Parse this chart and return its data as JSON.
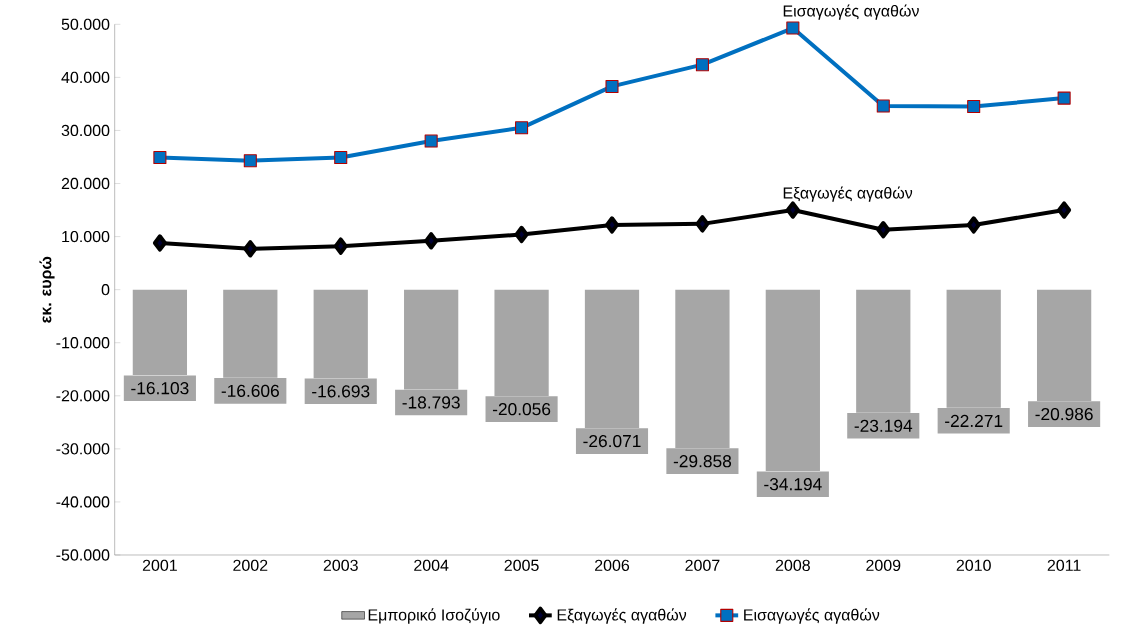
{
  "chart_data": {
    "type": "bar",
    "ylabel": "**εκ. ευρώ**",
    "categories": [
      "2001",
      "2002",
      "2003",
      "2004",
      "2005",
      "2006",
      "2007",
      "2008",
      "2009",
      "2010",
      "2011"
    ],
    "series": [
      {
        "name": "Εμπορικό Ισοζύγιο",
        "color": "#a6a6a6",
        "values": [
          -16103,
          -16606,
          -16693,
          -18793,
          -20056,
          -26071,
          -29858,
          -34194,
          -23194,
          -22271,
          -20986
        ],
        "value_labels": [
          "-16.103",
          "-16.606",
          "-16.693",
          "-18.793",
          "-20.056",
          "-26.071",
          "-29.858",
          "-34.194",
          "-23.194",
          "-22.271",
          "-20.986"
        ]
      },
      {
        "name": "Εξαγωγές αγαθών",
        "type": "line",
        "color": "#000000",
        "marker": "diamond",
        "values": [
          8800,
          7700,
          8200,
          9200,
          10400,
          12200,
          12400,
          15000,
          11300,
          12200,
          15000
        ]
      },
      {
        "name": "Εισαγωγές αγαθών",
        "type": "line",
        "color": "#0070c0",
        "marker": "square",
        "values": [
          24900,
          24300,
          24900,
          28000,
          30500,
          38300,
          42400,
          49300,
          34600,
          34500,
          36100
        ]
      }
    ],
    "ylim": [
      -50000,
      50000
    ],
    "yticks": [
      {
        "value": -50000,
        "label": "-50.000"
      },
      {
        "value": -40000,
        "label": "-40.000"
      },
      {
        "value": -30000,
        "label": "-30.000"
      },
      {
        "value": -20000,
        "label": "-20.000"
      },
      {
        "value": -10000,
        "label": "-10.000"
      },
      0,
      {
        "value": 10000,
        "label": "10.000"
      },
      {
        "value": 20000,
        "label": "20.000"
      },
      {
        "value": 30000,
        "label": "30.000"
      },
      {
        "value": 40000,
        "label": "40.000"
      },
      {
        "value": 50000,
        "label": "50.000"
      }
    ],
    "annotations": [
      {
        "text": "Εισαγωγές αγαθών",
        "x": "2008",
        "y": 49300
      },
      {
        "text": "Εξαγωγές αγαθών",
        "x": "2008",
        "y": 15000
      }
    ],
    "legend": "bottom"
  }
}
